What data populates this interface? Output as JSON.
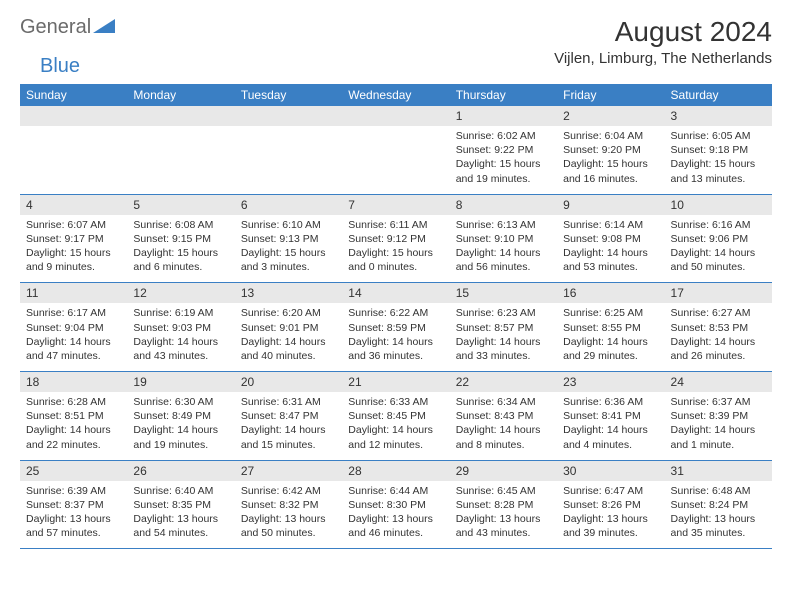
{
  "logo": {
    "text1": "General",
    "text2": "Blue"
  },
  "title": "August 2024",
  "location": "Vijlen, Limburg, The Netherlands",
  "colors": {
    "header_bg": "#3a7fc4",
    "header_text": "#ffffff",
    "daynum_bg": "#e8e8e8",
    "border": "#3a7fc4",
    "text": "#333333",
    "logo_gray": "#6b6b6b",
    "logo_blue": "#3a7fc4"
  },
  "weekdays": [
    "Sunday",
    "Monday",
    "Tuesday",
    "Wednesday",
    "Thursday",
    "Friday",
    "Saturday"
  ],
  "weeks": [
    [
      null,
      null,
      null,
      null,
      {
        "d": "1",
        "sr": "6:02 AM",
        "ss": "9:22 PM",
        "dl": "15 hours and 19 minutes."
      },
      {
        "d": "2",
        "sr": "6:04 AM",
        "ss": "9:20 PM",
        "dl": "15 hours and 16 minutes."
      },
      {
        "d": "3",
        "sr": "6:05 AM",
        "ss": "9:18 PM",
        "dl": "15 hours and 13 minutes."
      }
    ],
    [
      {
        "d": "4",
        "sr": "6:07 AM",
        "ss": "9:17 PM",
        "dl": "15 hours and 9 minutes."
      },
      {
        "d": "5",
        "sr": "6:08 AM",
        "ss": "9:15 PM",
        "dl": "15 hours and 6 minutes."
      },
      {
        "d": "6",
        "sr": "6:10 AM",
        "ss": "9:13 PM",
        "dl": "15 hours and 3 minutes."
      },
      {
        "d": "7",
        "sr": "6:11 AM",
        "ss": "9:12 PM",
        "dl": "15 hours and 0 minutes."
      },
      {
        "d": "8",
        "sr": "6:13 AM",
        "ss": "9:10 PM",
        "dl": "14 hours and 56 minutes."
      },
      {
        "d": "9",
        "sr": "6:14 AM",
        "ss": "9:08 PM",
        "dl": "14 hours and 53 minutes."
      },
      {
        "d": "10",
        "sr": "6:16 AM",
        "ss": "9:06 PM",
        "dl": "14 hours and 50 minutes."
      }
    ],
    [
      {
        "d": "11",
        "sr": "6:17 AM",
        "ss": "9:04 PM",
        "dl": "14 hours and 47 minutes."
      },
      {
        "d": "12",
        "sr": "6:19 AM",
        "ss": "9:03 PM",
        "dl": "14 hours and 43 minutes."
      },
      {
        "d": "13",
        "sr": "6:20 AM",
        "ss": "9:01 PM",
        "dl": "14 hours and 40 minutes."
      },
      {
        "d": "14",
        "sr": "6:22 AM",
        "ss": "8:59 PM",
        "dl": "14 hours and 36 minutes."
      },
      {
        "d": "15",
        "sr": "6:23 AM",
        "ss": "8:57 PM",
        "dl": "14 hours and 33 minutes."
      },
      {
        "d": "16",
        "sr": "6:25 AM",
        "ss": "8:55 PM",
        "dl": "14 hours and 29 minutes."
      },
      {
        "d": "17",
        "sr": "6:27 AM",
        "ss": "8:53 PM",
        "dl": "14 hours and 26 minutes."
      }
    ],
    [
      {
        "d": "18",
        "sr": "6:28 AM",
        "ss": "8:51 PM",
        "dl": "14 hours and 22 minutes."
      },
      {
        "d": "19",
        "sr": "6:30 AM",
        "ss": "8:49 PM",
        "dl": "14 hours and 19 minutes."
      },
      {
        "d": "20",
        "sr": "6:31 AM",
        "ss": "8:47 PM",
        "dl": "14 hours and 15 minutes."
      },
      {
        "d": "21",
        "sr": "6:33 AM",
        "ss": "8:45 PM",
        "dl": "14 hours and 12 minutes."
      },
      {
        "d": "22",
        "sr": "6:34 AM",
        "ss": "8:43 PM",
        "dl": "14 hours and 8 minutes."
      },
      {
        "d": "23",
        "sr": "6:36 AM",
        "ss": "8:41 PM",
        "dl": "14 hours and 4 minutes."
      },
      {
        "d": "24",
        "sr": "6:37 AM",
        "ss": "8:39 PM",
        "dl": "14 hours and 1 minute."
      }
    ],
    [
      {
        "d": "25",
        "sr": "6:39 AM",
        "ss": "8:37 PM",
        "dl": "13 hours and 57 minutes."
      },
      {
        "d": "26",
        "sr": "6:40 AM",
        "ss": "8:35 PM",
        "dl": "13 hours and 54 minutes."
      },
      {
        "d": "27",
        "sr": "6:42 AM",
        "ss": "8:32 PM",
        "dl": "13 hours and 50 minutes."
      },
      {
        "d": "28",
        "sr": "6:44 AM",
        "ss": "8:30 PM",
        "dl": "13 hours and 46 minutes."
      },
      {
        "d": "29",
        "sr": "6:45 AM",
        "ss": "8:28 PM",
        "dl": "13 hours and 43 minutes."
      },
      {
        "d": "30",
        "sr": "6:47 AM",
        "ss": "8:26 PM",
        "dl": "13 hours and 39 minutes."
      },
      {
        "d": "31",
        "sr": "6:48 AM",
        "ss": "8:24 PM",
        "dl": "13 hours and 35 minutes."
      }
    ]
  ],
  "labels": {
    "sunrise": "Sunrise:",
    "sunset": "Sunset:",
    "daylight": "Daylight:"
  }
}
